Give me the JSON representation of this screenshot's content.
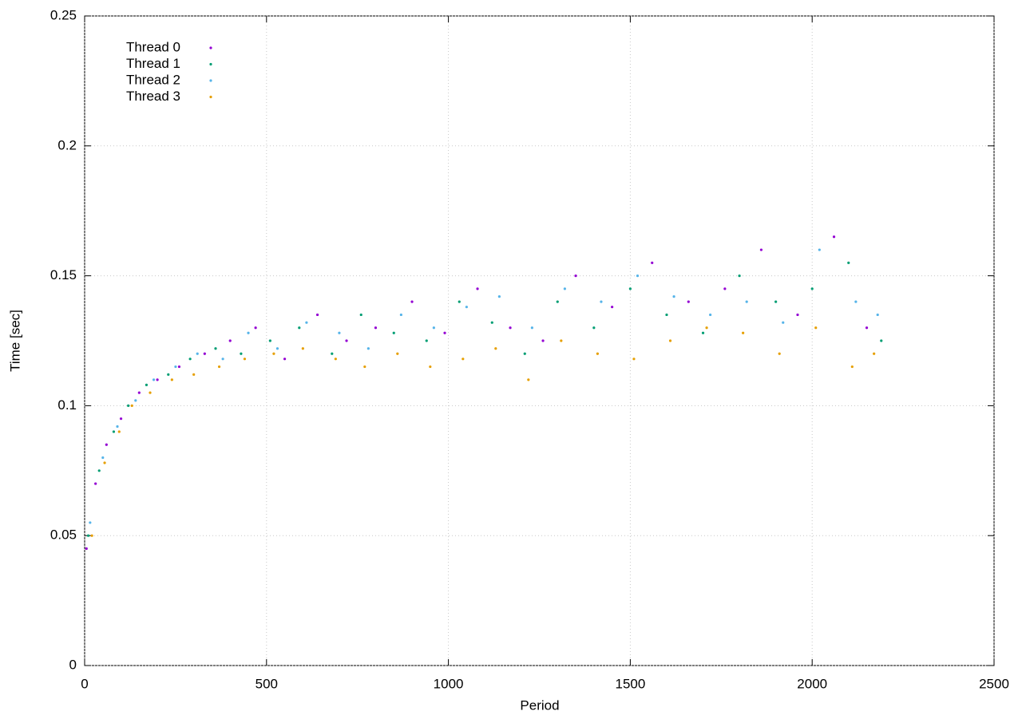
{
  "chart_data": {
    "type": "scatter",
    "x_label": "Period",
    "y_label": "Time [sec]",
    "xlim": [
      0,
      2500
    ],
    "xticks": [
      0,
      500,
      1000,
      1500,
      2000,
      2500
    ],
    "ylim": [
      0,
      0.25
    ],
    "yticks": [
      0,
      0.05,
      0.1,
      0.15,
      0.2,
      0.25
    ],
    "grid": true,
    "legend": "top-left",
    "series": [
      {
        "name": "Thread 0",
        "color": "#9400d3",
        "x": [
          5,
          30,
          60,
          100,
          150,
          200,
          260,
          330,
          400,
          470,
          550,
          640,
          720,
          800,
          900,
          990,
          1080,
          1170,
          1260,
          1350,
          1450,
          1560,
          1660,
          1760,
          1860,
          1960,
          2060,
          2150
        ],
        "values": [
          0.045,
          0.07,
          0.085,
          0.095,
          0.105,
          0.11,
          0.115,
          0.12,
          0.125,
          0.13,
          0.118,
          0.135,
          0.125,
          0.13,
          0.14,
          0.128,
          0.145,
          0.13,
          0.125,
          0.15,
          0.138,
          0.155,
          0.14,
          0.145,
          0.16,
          0.135,
          0.165,
          0.13
        ]
      },
      {
        "name": "Thread 1",
        "color": "#009e73",
        "x": [
          10,
          40,
          80,
          120,
          170,
          230,
          290,
          360,
          430,
          510,
          590,
          680,
          760,
          850,
          940,
          1030,
          1120,
          1210,
          1300,
          1400,
          1500,
          1600,
          1700,
          1800,
          1900,
          2000,
          2100,
          2190
        ],
        "values": [
          0.05,
          0.075,
          0.09,
          0.1,
          0.108,
          0.112,
          0.118,
          0.122,
          0.12,
          0.125,
          0.13,
          0.12,
          0.135,
          0.128,
          0.125,
          0.14,
          0.132,
          0.12,
          0.14,
          0.13,
          0.145,
          0.135,
          0.128,
          0.15,
          0.14,
          0.145,
          0.155,
          0.125
        ]
      },
      {
        "name": "Thread 2",
        "color": "#56b4e9",
        "x": [
          15,
          50,
          90,
          140,
          190,
          250,
          310,
          380,
          450,
          530,
          610,
          700,
          780,
          870,
          960,
          1050,
          1140,
          1230,
          1320,
          1420,
          1520,
          1620,
          1720,
          1820,
          1920,
          2020,
          2120,
          2180
        ],
        "values": [
          0.055,
          0.08,
          0.092,
          0.102,
          0.11,
          0.115,
          0.12,
          0.118,
          0.128,
          0.122,
          0.132,
          0.128,
          0.122,
          0.135,
          0.13,
          0.138,
          0.142,
          0.13,
          0.145,
          0.14,
          0.15,
          0.142,
          0.135,
          0.14,
          0.132,
          0.16,
          0.14,
          0.135
        ]
      },
      {
        "name": "Thread 3",
        "color": "#e69f00",
        "x": [
          20,
          55,
          95,
          130,
          180,
          240,
          300,
          370,
          440,
          520,
          600,
          690,
          770,
          860,
          950,
          1040,
          1130,
          1220,
          1310,
          1410,
          1510,
          1610,
          1710,
          1810,
          1910,
          2010,
          2110,
          2170
        ],
        "values": [
          0.05,
          0.078,
          0.09,
          0.1,
          0.105,
          0.11,
          0.112,
          0.115,
          0.118,
          0.12,
          0.122,
          0.118,
          0.115,
          0.12,
          0.115,
          0.118,
          0.122,
          0.11,
          0.125,
          0.12,
          0.118,
          0.125,
          0.13,
          0.128,
          0.12,
          0.13,
          0.115,
          0.12
        ]
      }
    ]
  }
}
